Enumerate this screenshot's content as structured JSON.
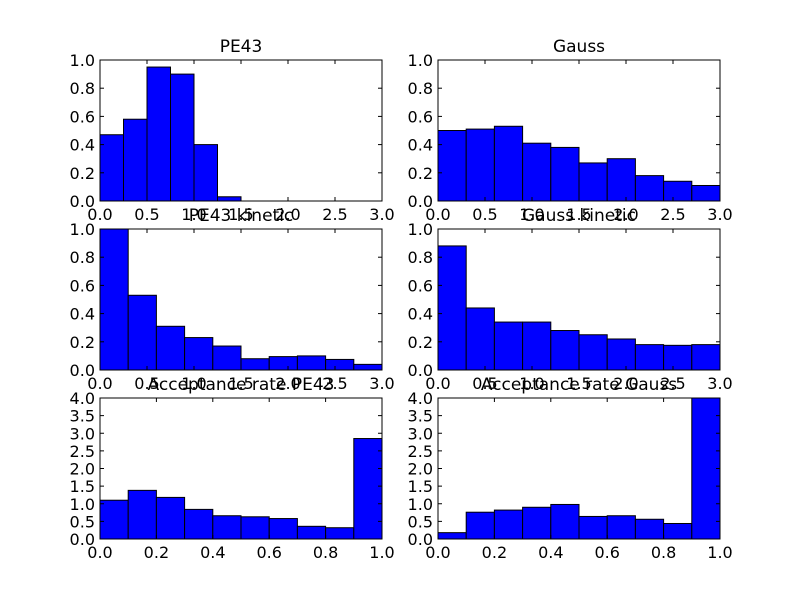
{
  "colors": {
    "bar": "#0000ff",
    "edge": "#000000",
    "background": "#ffffff"
  },
  "chart_data": [
    {
      "type": "bar",
      "title": "PE43",
      "xlim": [
        0,
        3
      ],
      "ylim": [
        0,
        1
      ],
      "xticks": [
        "0.0",
        "0.5",
        "1.0",
        "1.5",
        "2.0",
        "2.5",
        "3.0"
      ],
      "yticks": [
        "0.0",
        "0.2",
        "0.4",
        "0.6",
        "0.8",
        "1.0"
      ],
      "bin_edges": [
        0,
        0.25,
        0.5,
        0.75,
        1.0,
        1.25,
        1.5,
        1.75,
        2.0,
        2.25,
        2.5,
        2.75,
        3.0
      ],
      "values": [
        0.47,
        0.58,
        0.95,
        0.9,
        0.4,
        0.03,
        0,
        0,
        0,
        0,
        0,
        0
      ]
    },
    {
      "type": "bar",
      "title": "Gauss",
      "xlim": [
        0,
        3
      ],
      "ylim": [
        0,
        1
      ],
      "xticks": [
        "0.0",
        "0.5",
        "1.0",
        "1.5",
        "2.0",
        "2.5",
        "3.0"
      ],
      "yticks": [
        "0.0",
        "0.2",
        "0.4",
        "0.6",
        "0.8",
        "1.0"
      ],
      "bin_edges": [
        0,
        0.3,
        0.6,
        0.9,
        1.2,
        1.5,
        1.8,
        2.1,
        2.4,
        2.7,
        3.0
      ],
      "values": [
        0.5,
        0.51,
        0.53,
        0.41,
        0.38,
        0.27,
        0.3,
        0.18,
        0.14,
        0.11
      ]
    },
    {
      "type": "bar",
      "title": "PE43 kinetic",
      "xlim": [
        0,
        3
      ],
      "ylim": [
        0,
        1
      ],
      "xticks": [
        "0.0",
        "0.5",
        "1.0",
        "1.5",
        "2.0",
        "2.5",
        "3.0"
      ],
      "yticks": [
        "0.0",
        "0.2",
        "0.4",
        "0.6",
        "0.8",
        "1.0"
      ],
      "bin_edges": [
        0,
        0.3,
        0.6,
        0.9,
        1.2,
        1.5,
        1.8,
        2.1,
        2.4,
        2.7,
        3.0
      ],
      "values": [
        1.0,
        0.53,
        0.31,
        0.23,
        0.17,
        0.08,
        0.095,
        0.1,
        0.075,
        0.04
      ]
    },
    {
      "type": "bar",
      "title": "Gauss kinetic",
      "xlim": [
        0,
        3
      ],
      "ylim": [
        0,
        1
      ],
      "xticks": [
        "0.0",
        "0.5",
        "1.0",
        "1.5",
        "2.0",
        "2.5",
        "3.0"
      ],
      "yticks": [
        "0.0",
        "0.2",
        "0.4",
        "0.6",
        "0.8",
        "1.0"
      ],
      "bin_edges": [
        0,
        0.3,
        0.6,
        0.9,
        1.2,
        1.5,
        1.8,
        2.1,
        2.4,
        2.7,
        3.0
      ],
      "values": [
        0.88,
        0.44,
        0.34,
        0.34,
        0.28,
        0.25,
        0.22,
        0.18,
        0.175,
        0.18
      ]
    },
    {
      "type": "bar",
      "title": "Acceptance rate PE43",
      "xlim": [
        0,
        1
      ],
      "ylim": [
        0,
        4
      ],
      "xticks": [
        "0.0",
        "0.2",
        "0.4",
        "0.6",
        "0.8",
        "1.0"
      ],
      "yticks": [
        "0.0",
        "0.5",
        "1.0",
        "1.5",
        "2.0",
        "2.5",
        "3.0",
        "3.5",
        "4.0"
      ],
      "bin_edges": [
        0,
        0.1,
        0.2,
        0.3,
        0.4,
        0.5,
        0.6,
        0.7,
        0.8,
        0.9,
        1.0
      ],
      "values": [
        1.1,
        1.38,
        1.18,
        0.84,
        0.66,
        0.63,
        0.58,
        0.36,
        0.32,
        2.85
      ]
    },
    {
      "type": "bar",
      "title": "Acceptance rate Gauss",
      "xlim": [
        0,
        1
      ],
      "ylim": [
        0,
        4
      ],
      "xticks": [
        "0.0",
        "0.2",
        "0.4",
        "0.6",
        "0.8",
        "1.0"
      ],
      "yticks": [
        "0.0",
        "0.5",
        "1.0",
        "1.5",
        "2.0",
        "2.5",
        "3.0",
        "3.5",
        "4.0"
      ],
      "bin_edges": [
        0,
        0.1,
        0.2,
        0.3,
        0.4,
        0.5,
        0.6,
        0.7,
        0.8,
        0.9,
        1.0
      ],
      "values": [
        0.18,
        0.76,
        0.82,
        0.9,
        0.98,
        0.64,
        0.66,
        0.56,
        0.44,
        4.0
      ]
    }
  ]
}
